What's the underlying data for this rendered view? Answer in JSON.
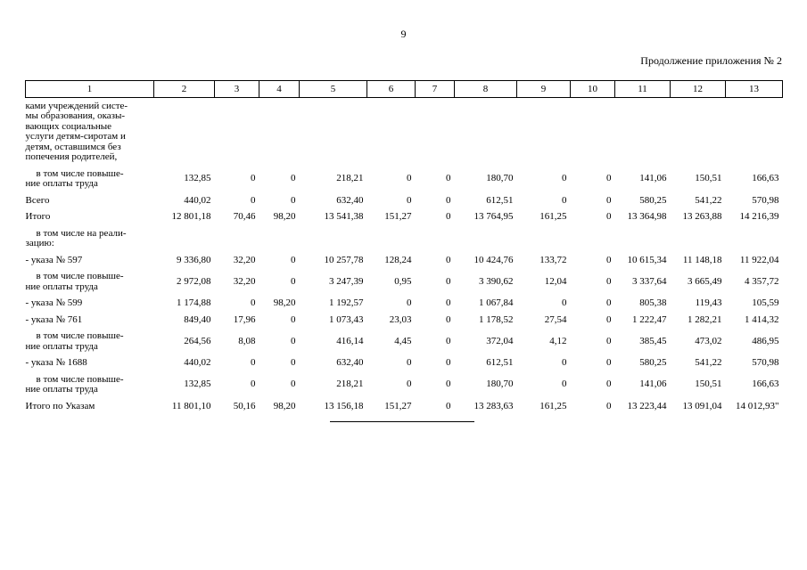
{
  "page": {
    "number": "9",
    "continuation_label": "Продолжение приложения № 2"
  },
  "table": {
    "column_headers": [
      "1",
      "2",
      "3",
      "4",
      "5",
      "6",
      "7",
      "8",
      "9",
      "10",
      "11",
      "12",
      "13"
    ],
    "rows": [
      {
        "label": "ками учреждений систе-\nмы образования, оказы-\nвающих социальные\nуслуги детям-сиротам и\nдетям, оставшимся без\nпопечения родителей,",
        "indent": false,
        "values": [
          "",
          "",
          "",
          "",
          "",
          "",
          "",
          "",
          "",
          "",
          "",
          ""
        ]
      },
      {
        "label": "в том числе повыше-\nние оплаты труда",
        "indent": true,
        "values": [
          "132,85",
          "0",
          "0",
          "218,21",
          "0",
          "0",
          "180,70",
          "0",
          "0",
          "141,06",
          "150,51",
          "166,63"
        ]
      },
      {
        "label": "Всего",
        "indent": false,
        "values": [
          "440,02",
          "0",
          "0",
          "632,40",
          "0",
          "0",
          "612,51",
          "0",
          "0",
          "580,25",
          "541,22",
          "570,98"
        ]
      },
      {
        "label": "Итого",
        "indent": false,
        "values": [
          "12 801,18",
          "70,46",
          "98,20",
          "13 541,38",
          "151,27",
          "0",
          "13 764,95",
          "161,25",
          "0",
          "13 364,98",
          "13 263,88",
          "14 216,39"
        ]
      },
      {
        "label": "в том числе на реали-\nзацию:",
        "indent": true,
        "values": [
          "",
          "",
          "",
          "",
          "",
          "",
          "",
          "",
          "",
          "",
          "",
          ""
        ]
      },
      {
        "label": "- указа № 597",
        "indent": false,
        "values": [
          "9 336,80",
          "32,20",
          "0",
          "10 257,78",
          "128,24",
          "0",
          "10 424,76",
          "133,72",
          "0",
          "10 615,34",
          "11 148,18",
          "11 922,04"
        ]
      },
      {
        "label": "в том числе повыше-\nние оплаты труда",
        "indent": true,
        "values": [
          "2 972,08",
          "32,20",
          "0",
          "3 247,39",
          "0,95",
          "0",
          "3 390,62",
          "12,04",
          "0",
          "3 337,64",
          "3 665,49",
          "4 357,72"
        ]
      },
      {
        "label": "- указа № 599",
        "indent": false,
        "values": [
          "1 174,88",
          "0",
          "98,20",
          "1 192,57",
          "0",
          "0",
          "1 067,84",
          "0",
          "0",
          "805,38",
          "119,43",
          "105,59"
        ]
      },
      {
        "label": "- указа № 761",
        "indent": false,
        "values": [
          "849,40",
          "17,96",
          "0",
          "1 073,43",
          "23,03",
          "0",
          "1 178,52",
          "27,54",
          "0",
          "1 222,47",
          "1 282,21",
          "1 414,32"
        ]
      },
      {
        "label": "в том числе повыше-\nние оплаты труда",
        "indent": true,
        "values": [
          "264,56",
          "8,08",
          "0",
          "416,14",
          "4,45",
          "0",
          "372,04",
          "4,12",
          "0",
          "385,45",
          "473,02",
          "486,95"
        ]
      },
      {
        "label": "- указа № 1688",
        "indent": false,
        "values": [
          "440,02",
          "0",
          "0",
          "632,40",
          "0",
          "0",
          "612,51",
          "0",
          "0",
          "580,25",
          "541,22",
          "570,98"
        ]
      },
      {
        "label": "в том числе повыше-\nние оплаты труда",
        "indent": true,
        "values": [
          "132,85",
          "0",
          "0",
          "218,21",
          "0",
          "0",
          "180,70",
          "0",
          "0",
          "141,06",
          "150,51",
          "166,63"
        ]
      },
      {
        "label": "Итого по Указам",
        "indent": false,
        "values": [
          "11 801,10",
          "50,16",
          "98,20",
          "13 156,18",
          "151,27",
          "0",
          "13 283,63",
          "161,25",
          "0",
          "13 223,44",
          "13 091,04",
          "14 012,93\""
        ]
      }
    ]
  }
}
